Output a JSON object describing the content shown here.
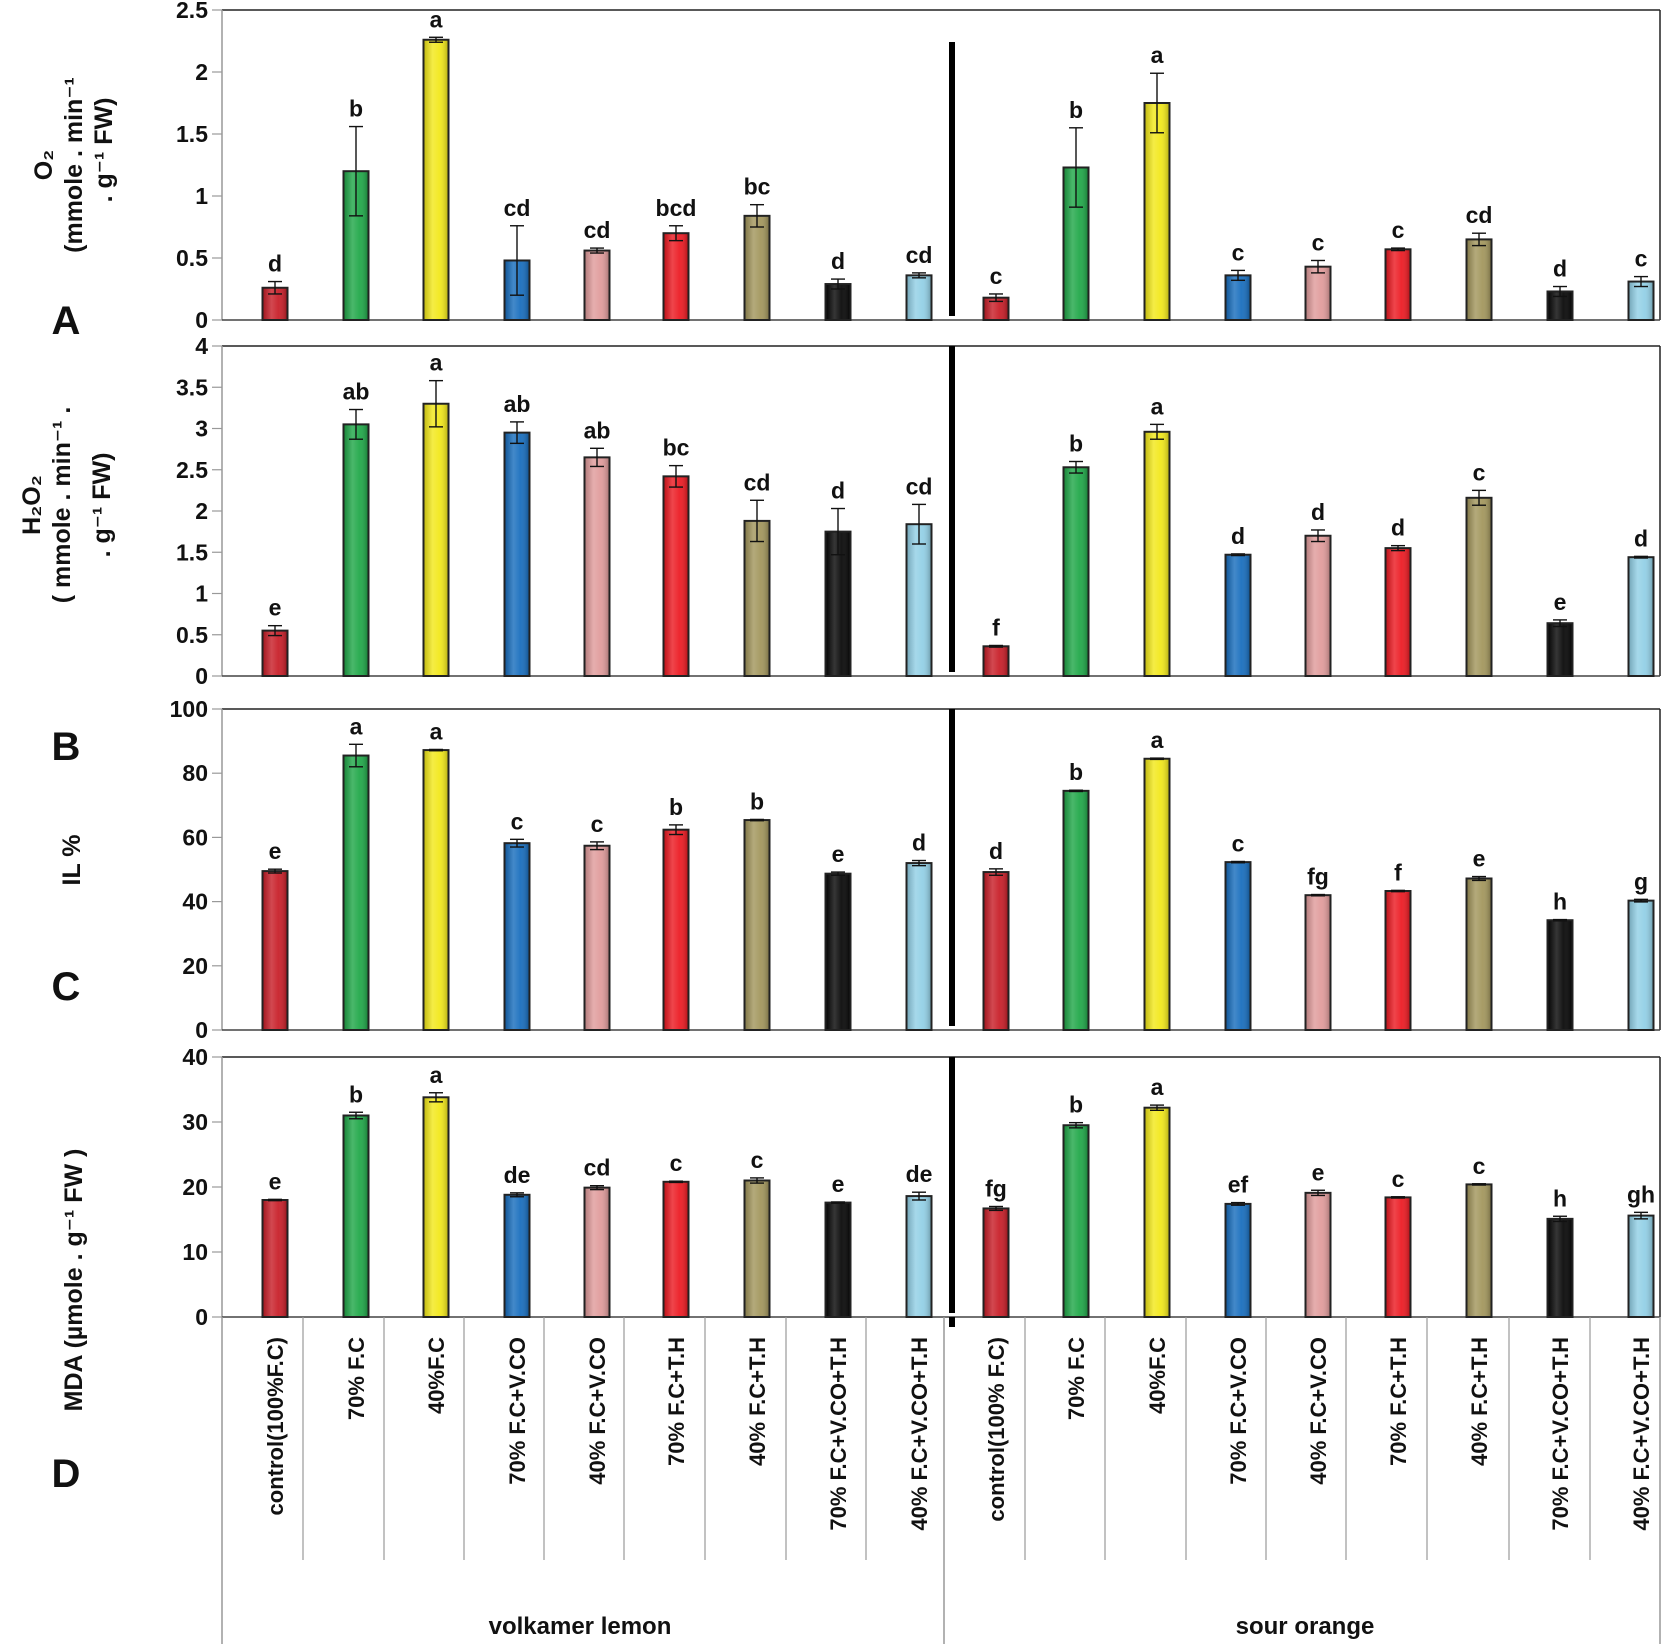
{
  "figure": {
    "groups": [
      "volkamer lemon",
      "sour orange"
    ],
    "categories": [
      "control(100%F.C)",
      "70% F.C",
      "40%F.C",
      "70% F.C+V.CO",
      "40% F.C+V.CO",
      "70% F.C+T.H",
      "40% F.C+T.H",
      "70% F.C+V.CO+T.H",
      "40% F.C+V.CO+T.H"
    ],
    "categories_sour_orange": [
      "control(100% F.C)",
      "70% F.C",
      "40%F.C",
      "70% F.C+V.CO",
      "40% F.C+V.CO",
      "70% F.C+T.H",
      "40% F.C+T.H",
      "70% F.C+V.CO+T.H",
      "40% F.C+V.CO+T.H"
    ],
    "bar_colors": [
      "#c8202a",
      "#22a84a",
      "#f2e81c",
      "#1a6fbe",
      "#e09c9c",
      "#ec1c24",
      "#a3975e",
      "#0a0a0a",
      "#93d0e6"
    ],
    "panel_letters": [
      "A",
      "B",
      "C",
      "D"
    ]
  },
  "chart_data": [
    {
      "type": "bar",
      "panel": "A",
      "ylabel_lines": [
        "O2",
        "(mmole . min-1",
        ". g-1 FW)"
      ],
      "ylim": [
        0,
        2.5
      ],
      "yticks": [
        0,
        0.5,
        1,
        1.5,
        2,
        2.5
      ],
      "ytick_labels": [
        "0",
        "0.5",
        "1",
        "1.5",
        "2",
        "2.5"
      ],
      "series": [
        {
          "name": "volkamer lemon",
          "values": [
            0.26,
            1.2,
            2.26,
            0.48,
            0.56,
            0.7,
            0.84,
            0.29,
            0.36
          ],
          "errors": [
            0.05,
            0.36,
            0.02,
            0.28,
            0.02,
            0.06,
            0.09,
            0.04,
            0.02
          ],
          "letters": [
            "d",
            "b",
            "a",
            "cd",
            "cd",
            "bcd",
            "bc",
            "d",
            "cd"
          ]
        },
        {
          "name": "sour orange",
          "values": [
            0.18,
            1.23,
            1.75,
            0.36,
            0.43,
            0.57,
            0.65,
            0.23,
            0.31
          ],
          "errors": [
            0.03,
            0.32,
            0.24,
            0.04,
            0.05,
            0.01,
            0.05,
            0.04,
            0.04
          ],
          "letters": [
            "c",
            "b",
            "a",
            "c",
            "c",
            "c",
            "cd",
            "d",
            "c"
          ]
        }
      ]
    },
    {
      "type": "bar",
      "panel": "B",
      "ylabel_lines": [
        "H2O2",
        "( mmole . min-1 .",
        ". g-1 FW)"
      ],
      "ylim": [
        0,
        4
      ],
      "yticks": [
        0,
        0.5,
        1,
        1.5,
        2,
        2.5,
        3,
        3.5,
        4
      ],
      "ytick_labels": [
        "0",
        "0.5",
        "1",
        "1.5",
        "2",
        "2.5",
        "3",
        "3.5",
        "4"
      ],
      "series": [
        {
          "name": "volkamer lemon",
          "values": [
            0.55,
            3.05,
            3.3,
            2.95,
            2.65,
            2.42,
            1.88,
            1.75,
            1.84
          ],
          "errors": [
            0.06,
            0.18,
            0.28,
            0.13,
            0.11,
            0.13,
            0.25,
            0.28,
            0.24
          ],
          "letters": [
            "e",
            "ab",
            "a",
            "ab",
            "ab",
            "bc",
            "cd",
            "d",
            "cd"
          ]
        },
        {
          "name": "sour orange",
          "values": [
            0.36,
            2.53,
            2.96,
            1.47,
            1.7,
            1.55,
            2.16,
            0.64,
            1.44
          ],
          "errors": [
            0.01,
            0.07,
            0.09,
            0.01,
            0.07,
            0.03,
            0.09,
            0.04,
            0.01
          ],
          "letters": [
            "f",
            "b",
            "a",
            "d",
            "d",
            "d",
            "c",
            "e",
            "d"
          ]
        }
      ]
    },
    {
      "type": "bar",
      "panel": "C",
      "ylabel_lines": [
        "IL %"
      ],
      "ylim": [
        0,
        100
      ],
      "yticks": [
        0,
        20,
        40,
        60,
        80,
        100
      ],
      "ytick_labels": [
        "0",
        "20",
        "40",
        "60",
        "80",
        "100"
      ],
      "series": [
        {
          "name": "volkamer lemon",
          "values": [
            49.5,
            85.5,
            87.2,
            58.2,
            57.4,
            62.4,
            65.4,
            48.7,
            52.0
          ],
          "errors": [
            0.6,
            3.5,
            0.2,
            1.2,
            1.2,
            1.5,
            0.2,
            0.5,
            0.8
          ],
          "letters": [
            "e",
            "a",
            "a",
            "c",
            "c",
            "b",
            "b",
            "e",
            "d"
          ]
        },
        {
          "name": "sour orange",
          "values": [
            49.2,
            74.5,
            84.5,
            52.3,
            42.0,
            43.3,
            47.2,
            34.2,
            40.3
          ],
          "errors": [
            1.0,
            0.2,
            0.2,
            0.2,
            0.2,
            0.2,
            0.6,
            0.2,
            0.4
          ],
          "letters": [
            "d",
            "b",
            "a",
            "c",
            "fg",
            "f",
            "e",
            "h",
            "g"
          ]
        }
      ]
    },
    {
      "type": "bar",
      "panel": "D",
      "ylabel_lines": [
        "MDA (µmole . g-1 FW )"
      ],
      "ylim": [
        0,
        40
      ],
      "yticks": [
        0,
        10,
        20,
        30,
        40
      ],
      "ytick_labels": [
        "0",
        "10",
        "20",
        "30",
        "40"
      ],
      "series": [
        {
          "name": "volkamer lemon",
          "values": [
            18.0,
            31.0,
            33.8,
            18.8,
            19.9,
            20.8,
            21.0,
            17.6,
            18.6
          ],
          "errors": [
            0.1,
            0.5,
            0.7,
            0.3,
            0.3,
            0.1,
            0.4,
            0.1,
            0.6
          ],
          "letters": [
            "e",
            "b",
            "a",
            "de",
            "cd",
            "c",
            "c",
            "e",
            "de"
          ]
        },
        {
          "name": "sour orange",
          "values": [
            16.7,
            29.5,
            32.2,
            17.4,
            19.1,
            18.4,
            20.4,
            15.1,
            15.6
          ],
          "errors": [
            0.3,
            0.4,
            0.4,
            0.2,
            0.4,
            0.1,
            0.1,
            0.4,
            0.5
          ],
          "letters": [
            "fg",
            "b",
            "a",
            "ef",
            "e",
            "c",
            "c",
            "h",
            "gh"
          ]
        }
      ]
    }
  ]
}
